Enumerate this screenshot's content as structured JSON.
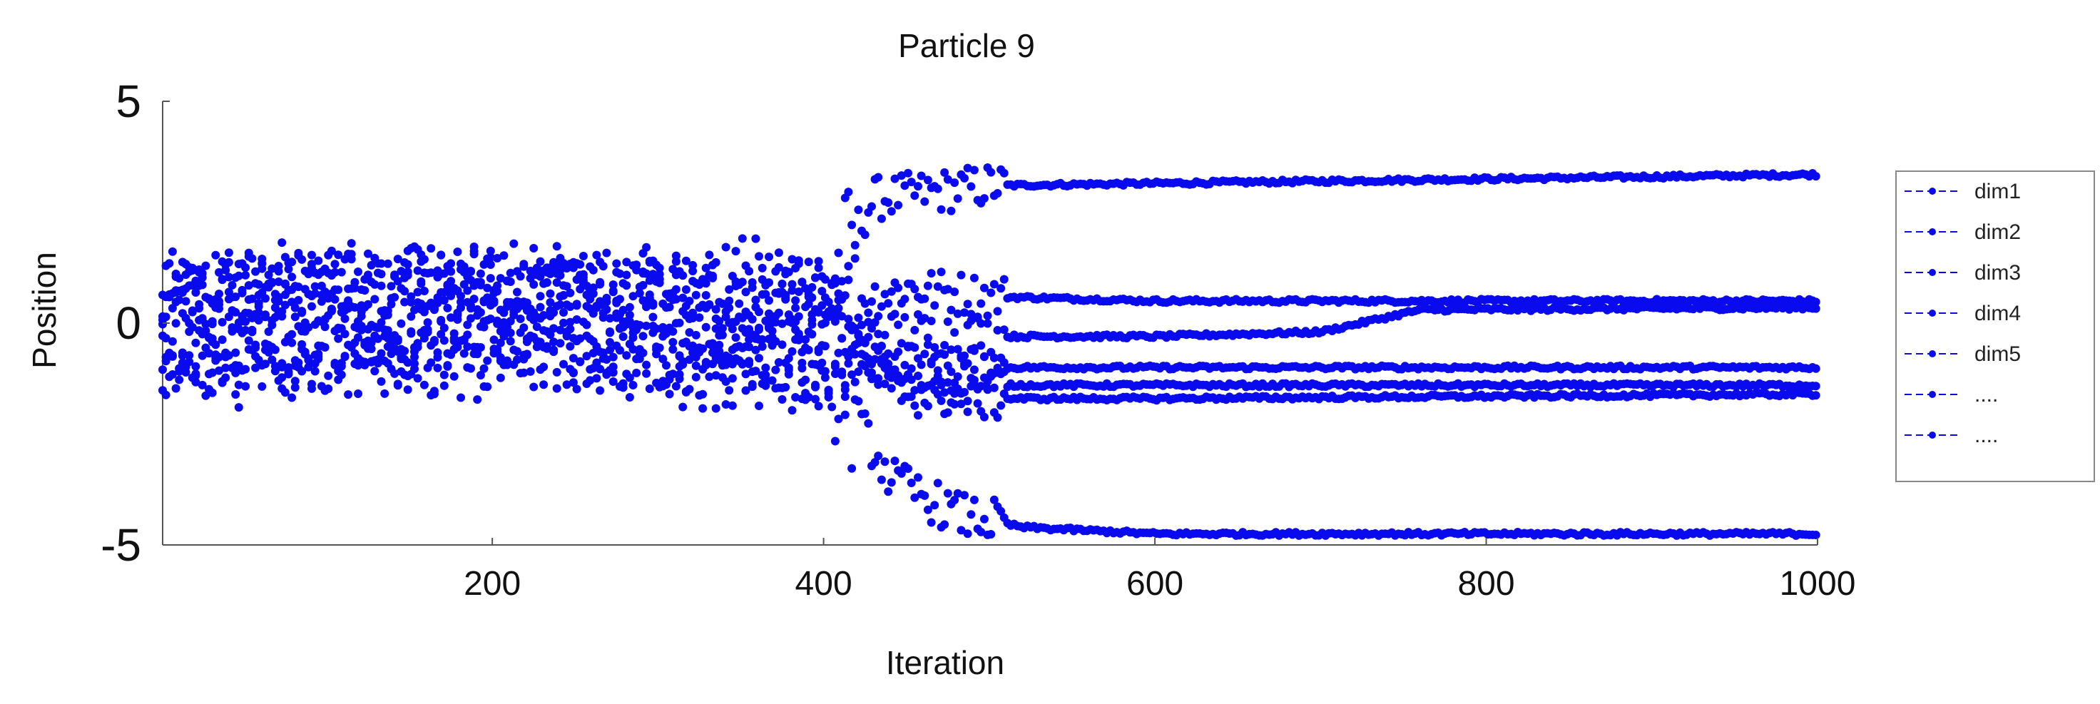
{
  "chart_data": {
    "type": "scatter",
    "title": "Particle 9",
    "xlabel": "Iteration",
    "ylabel": "Position",
    "xlim": [
      1,
      1000
    ],
    "ylim": [
      -5,
      5
    ],
    "x_ticks": [
      200,
      400,
      600,
      800,
      1000
    ],
    "y_ticks": [
      5,
      0,
      -5
    ],
    "y_tick_labels": [
      "5",
      "0",
      "-5"
    ],
    "grid": false,
    "legend_position": "right",
    "color": "#0a0aee",
    "series": [
      {
        "name": "dim1",
        "values": [
          [
            1,
            0.2
          ],
          [
            100,
            0.6
          ],
          [
            200,
            0.3
          ],
          [
            300,
            0.4
          ],
          [
            400,
            0.7
          ],
          [
            430,
            2.8
          ],
          [
            500,
            3.1
          ],
          [
            600,
            3.15
          ],
          [
            800,
            3.25
          ],
          [
            1000,
            3.35
          ]
        ]
      },
      {
        "name": "dim2",
        "values": [
          [
            1,
            -0.3
          ],
          [
            100,
            0.1
          ],
          [
            200,
            -0.4
          ],
          [
            300,
            0.2
          ],
          [
            400,
            0.3
          ],
          [
            450,
            0.8
          ],
          [
            500,
            0.6
          ],
          [
            600,
            0.5
          ],
          [
            800,
            0.5
          ],
          [
            1000,
            0.5
          ]
        ]
      },
      {
        "name": "dim3",
        "values": [
          [
            1,
            0.5
          ],
          [
            100,
            0.2
          ],
          [
            200,
            0.6
          ],
          [
            300,
            -0.2
          ],
          [
            400,
            -0.3
          ],
          [
            450,
            -0.2
          ],
          [
            500,
            -0.3
          ],
          [
            600,
            -0.3
          ],
          [
            700,
            -0.2
          ],
          [
            760,
            0.3
          ],
          [
            1000,
            0.35
          ]
        ]
      },
      {
        "name": "dim4",
        "values": [
          [
            1,
            -0.6
          ],
          [
            100,
            -0.4
          ],
          [
            200,
            0.1
          ],
          [
            300,
            -0.5
          ],
          [
            400,
            -0.6
          ],
          [
            450,
            -0.9
          ],
          [
            500,
            -1.0
          ],
          [
            600,
            -1.0
          ],
          [
            800,
            -1.0
          ],
          [
            1000,
            -1.0
          ]
        ]
      },
      {
        "name": "dim5",
        "values": [
          [
            1,
            0.0
          ],
          [
            100,
            -0.2
          ],
          [
            200,
            -0.3
          ],
          [
            300,
            0.1
          ],
          [
            400,
            -0.5
          ],
          [
            450,
            -1.3
          ],
          [
            500,
            -1.4
          ],
          [
            600,
            -1.4
          ],
          [
            800,
            -1.4
          ],
          [
            1000,
            -1.4
          ]
        ]
      },
      {
        "name": "....",
        "values": [
          [
            1,
            0.1
          ],
          [
            100,
            0.3
          ],
          [
            200,
            0.0
          ],
          [
            300,
            -0.1
          ],
          [
            400,
            -0.8
          ],
          [
            440,
            -3.5
          ],
          [
            480,
            -4.3
          ],
          [
            520,
            -4.6
          ],
          [
            600,
            -4.75
          ],
          [
            800,
            -4.75
          ],
          [
            1000,
            -4.75
          ]
        ]
      },
      {
        "name": "....",
        "values": [
          [
            1,
            -0.2
          ],
          [
            100,
            0.4
          ],
          [
            200,
            0.2
          ],
          [
            300,
            0.3
          ],
          [
            400,
            -0.2
          ],
          [
            450,
            -1.6
          ],
          [
            500,
            -1.7
          ],
          [
            600,
            -1.7
          ],
          [
            800,
            -1.65
          ],
          [
            1000,
            -1.6
          ]
        ]
      }
    ]
  }
}
